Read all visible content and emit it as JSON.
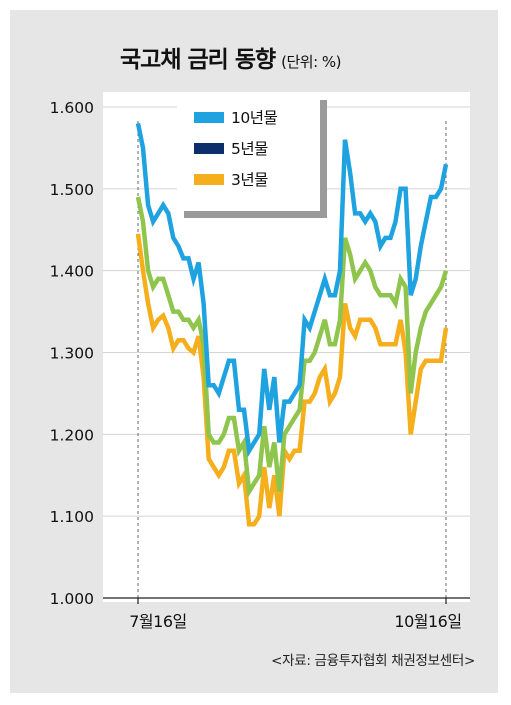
{
  "title": "국고채 금리 동향",
  "unit": "(단위: %)",
  "source": "<자료: 금융투자협회 채권정보센터>",
  "colors": {
    "y10": "#1fa3e0",
    "y5": "#0b2f6b",
    "y3": "#f5ae1c",
    "green": "#8fc54c",
    "legend_shadow": "#9a9a9a"
  },
  "chart_data": {
    "type": "line",
    "title": "국고채 금리 동향",
    "ylim": [
      1.0,
      1.6
    ],
    "yticks": [
      "1.000",
      "1.100",
      "1.200",
      "1.300",
      "1.400",
      "1.500",
      "1.600"
    ],
    "xticks": [
      "7월16일",
      "10월16일"
    ],
    "legend_position": "top-left",
    "series": [
      {
        "name": "10년물",
        "color": "#1fa3e0",
        "values": [
          1.58,
          1.55,
          1.48,
          1.46,
          1.47,
          1.48,
          1.47,
          1.44,
          1.43,
          1.415,
          1.415,
          1.39,
          1.41,
          1.36,
          1.26,
          1.26,
          1.25,
          1.27,
          1.29,
          1.29,
          1.23,
          1.23,
          1.18,
          1.19,
          1.2,
          1.28,
          1.23,
          1.27,
          1.19,
          1.24,
          1.24,
          1.25,
          1.26,
          1.34,
          1.33,
          1.35,
          1.37,
          1.39,
          1.37,
          1.37,
          1.4,
          1.56,
          1.52,
          1.47,
          1.47,
          1.46,
          1.47,
          1.46,
          1.43,
          1.44,
          1.44,
          1.46,
          1.5,
          1.5,
          1.37,
          1.39,
          1.43,
          1.46,
          1.49,
          1.49,
          1.5,
          1.53
        ]
      },
      {
        "name": "5년물",
        "color": "#0b2f6b",
        "values": []
      },
      {
        "name": "3년물",
        "color": "#f5ae1c",
        "values": [
          1.445,
          1.4,
          1.36,
          1.33,
          1.34,
          1.345,
          1.33,
          1.305,
          1.315,
          1.315,
          1.305,
          1.3,
          1.32,
          1.27,
          1.17,
          1.16,
          1.15,
          1.16,
          1.18,
          1.18,
          1.14,
          1.15,
          1.09,
          1.09,
          1.1,
          1.16,
          1.11,
          1.15,
          1.1,
          1.18,
          1.17,
          1.18,
          1.18,
          1.24,
          1.24,
          1.25,
          1.27,
          1.28,
          1.24,
          1.25,
          1.27,
          1.36,
          1.33,
          1.32,
          1.34,
          1.34,
          1.34,
          1.33,
          1.31,
          1.31,
          1.31,
          1.31,
          1.34,
          1.3,
          1.2,
          1.24,
          1.28,
          1.29,
          1.29,
          1.29,
          1.29,
          1.33
        ]
      },
      {
        "name": "",
        "color": "#8fc54c",
        "values": [
          1.49,
          1.46,
          1.4,
          1.38,
          1.39,
          1.39,
          1.37,
          1.35,
          1.35,
          1.34,
          1.34,
          1.33,
          1.34,
          1.31,
          1.2,
          1.19,
          1.19,
          1.2,
          1.22,
          1.22,
          1.18,
          1.19,
          1.13,
          1.14,
          1.15,
          1.21,
          1.16,
          1.19,
          1.13,
          1.2,
          1.21,
          1.22,
          1.23,
          1.29,
          1.29,
          1.3,
          1.32,
          1.34,
          1.31,
          1.31,
          1.34,
          1.44,
          1.42,
          1.39,
          1.4,
          1.41,
          1.4,
          1.38,
          1.37,
          1.37,
          1.37,
          1.36,
          1.39,
          1.38,
          1.25,
          1.3,
          1.33,
          1.35,
          1.36,
          1.37,
          1.38,
          1.4
        ]
      }
    ]
  }
}
